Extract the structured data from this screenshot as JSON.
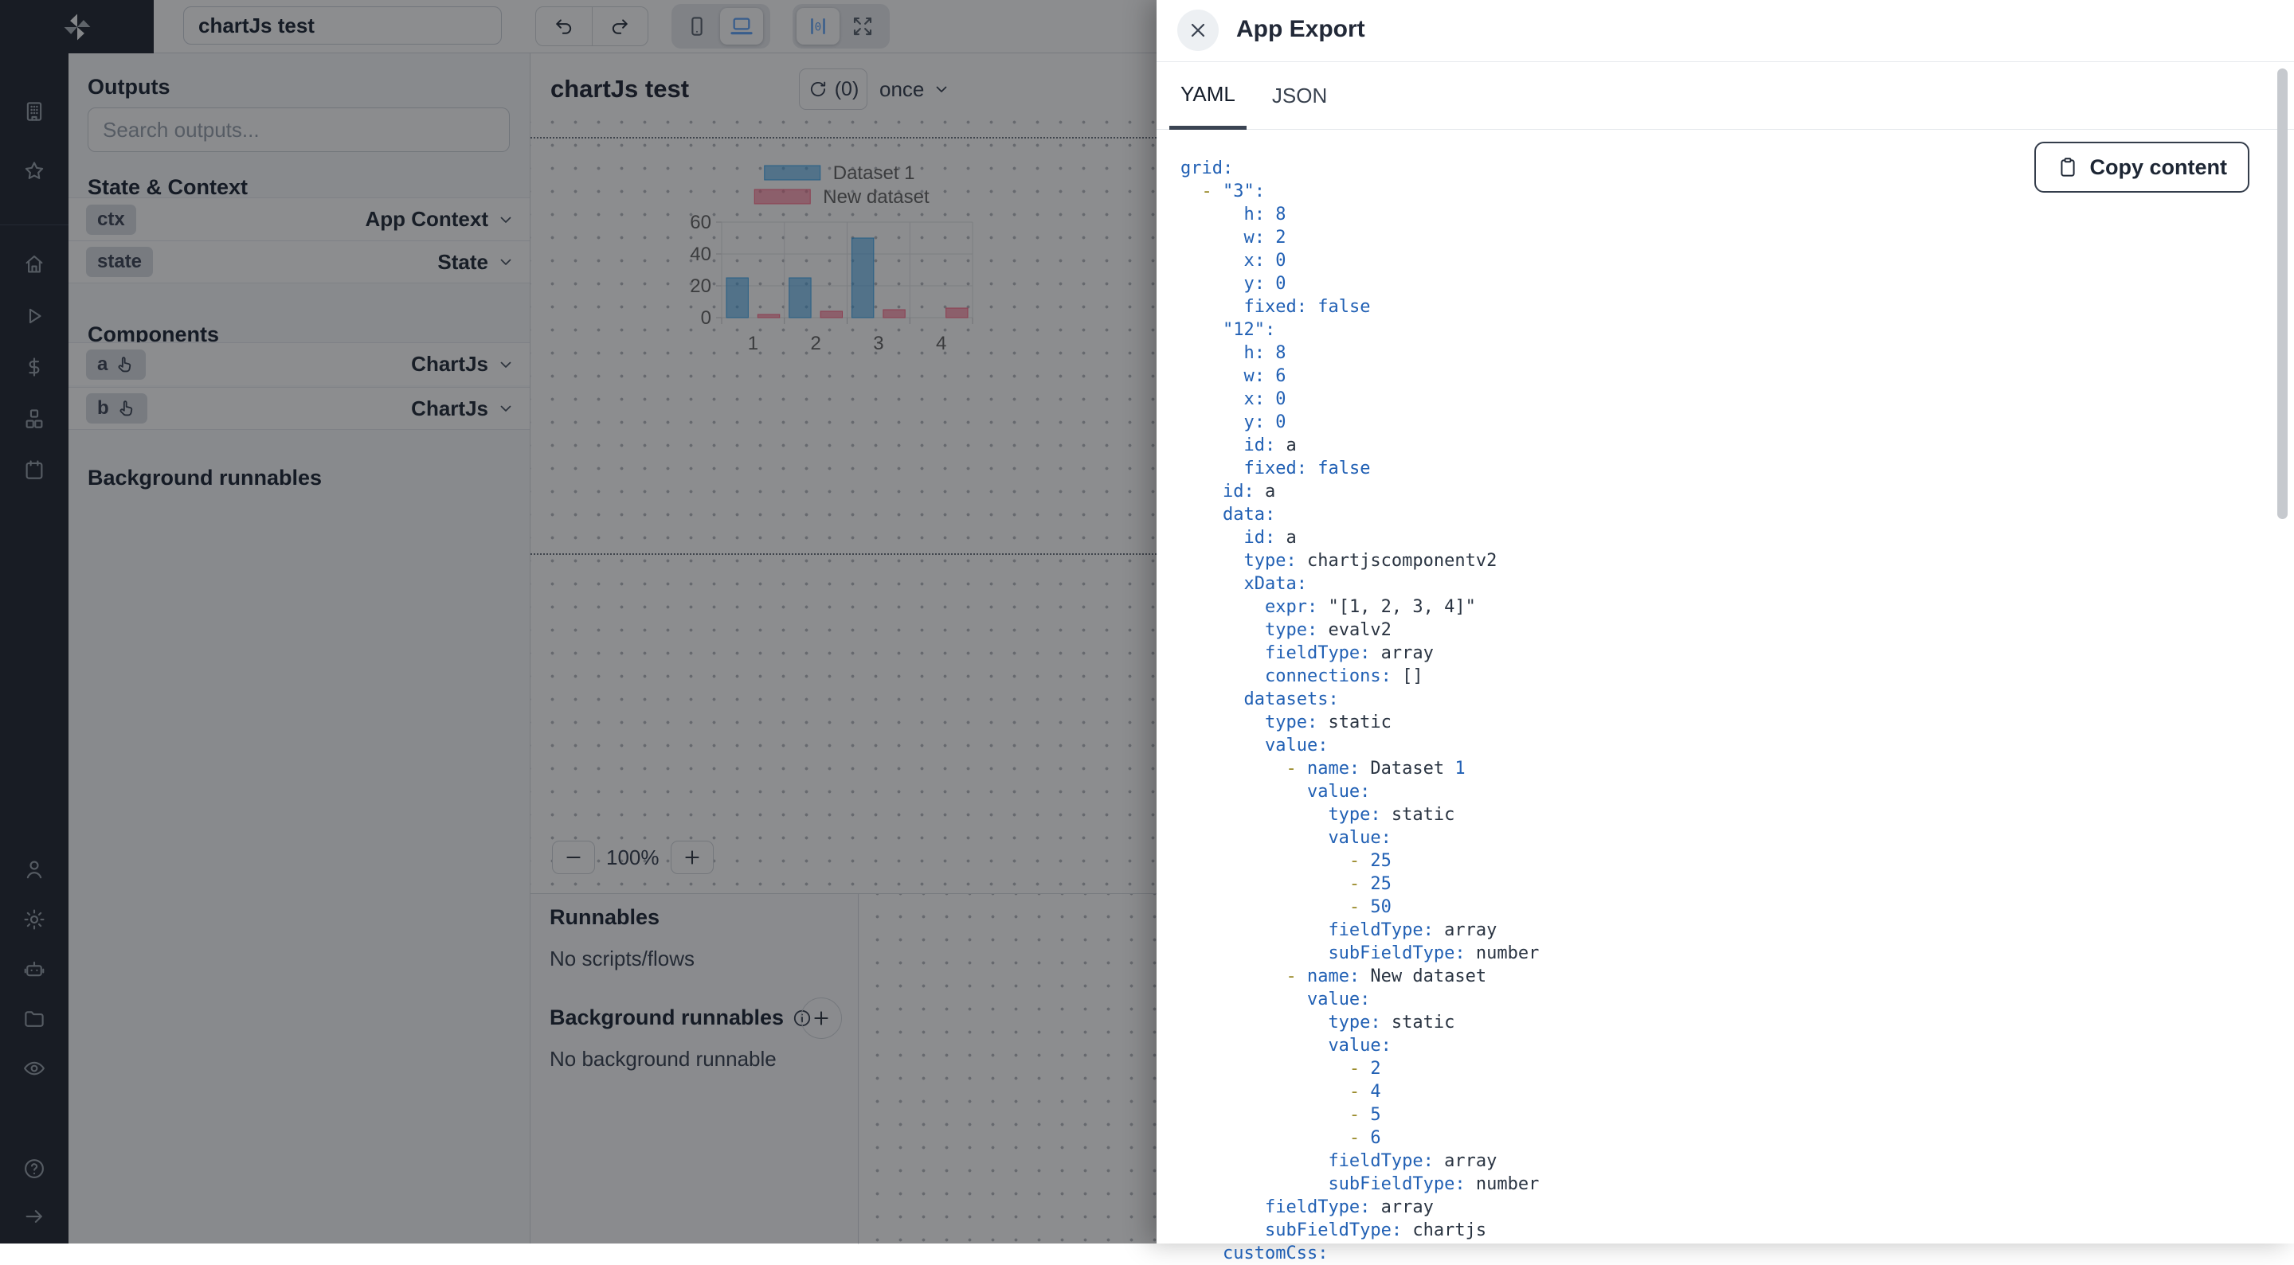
{
  "app": {
    "title_input": "chartJs test"
  },
  "sidebar": {
    "logo": "windmill-logo",
    "workspace_icons": [
      "building",
      "star"
    ],
    "nav_icons": [
      "home",
      "play",
      "dollar",
      "cubes",
      "calendar"
    ],
    "tool_icons": [
      "person",
      "gear",
      "robot",
      "folder",
      "eye"
    ],
    "footer_icons": [
      "help",
      "arrow-right"
    ]
  },
  "topbar": {
    "history_icons": [
      "undo",
      "redo"
    ],
    "device_options": [
      "phone",
      "laptop"
    ],
    "device_selected": "laptop",
    "layout_options": [
      "center",
      "fullscreen"
    ],
    "layout_selected": "center"
  },
  "outputs_panel": {
    "header": "Outputs",
    "search_placeholder": "Search outputs...",
    "state_context_header": "State & Context",
    "state_rows": [
      {
        "badge": "ctx",
        "type": "App Context"
      },
      {
        "badge": "state",
        "type": "State"
      }
    ],
    "components_header": "Components",
    "component_rows": [
      {
        "badge": "a",
        "type": "ChartJs"
      },
      {
        "badge": "b",
        "type": "ChartJs"
      }
    ],
    "background_header": "Background runnables"
  },
  "canvas": {
    "title": "chartJs test",
    "refresh_count": "(0)",
    "schedule": "once",
    "zoom_level": "100%"
  },
  "runnables_panel": {
    "header": "Runnables",
    "empty": "No scripts/flows",
    "background_header": "Background runnables",
    "background_empty": "No background runnable"
  },
  "export_panel": {
    "title": "App Export",
    "tabs": [
      "YAML",
      "JSON"
    ],
    "active_tab": "YAML",
    "copy_button": "Copy content",
    "yaml_lines": [
      [
        [
          "b",
          "grid:"
        ]
      ],
      [
        [
          "s",
          "  "
        ],
        [
          "d",
          "-"
        ],
        [
          "s",
          " "
        ],
        [
          "b",
          "\"3\":"
        ]
      ],
      [
        [
          "s",
          "      "
        ],
        [
          "b",
          "h:"
        ],
        [
          "s",
          " "
        ],
        [
          "b",
          "8"
        ]
      ],
      [
        [
          "s",
          "      "
        ],
        [
          "b",
          "w:"
        ],
        [
          "s",
          " "
        ],
        [
          "b",
          "2"
        ]
      ],
      [
        [
          "s",
          "      "
        ],
        [
          "b",
          "x:"
        ],
        [
          "s",
          " "
        ],
        [
          "b",
          "0"
        ]
      ],
      [
        [
          "s",
          "      "
        ],
        [
          "b",
          "y:"
        ],
        [
          "s",
          " "
        ],
        [
          "b",
          "0"
        ]
      ],
      [
        [
          "s",
          "      "
        ],
        [
          "b",
          "fixed:"
        ],
        [
          "s",
          " "
        ],
        [
          "b",
          "false"
        ]
      ],
      [
        [
          "s",
          "    "
        ],
        [
          "b",
          "\"12\":"
        ]
      ],
      [
        [
          "s",
          "      "
        ],
        [
          "b",
          "h:"
        ],
        [
          "s",
          " "
        ],
        [
          "b",
          "8"
        ]
      ],
      [
        [
          "s",
          "      "
        ],
        [
          "b",
          "w:"
        ],
        [
          "s",
          " "
        ],
        [
          "b",
          "6"
        ]
      ],
      [
        [
          "s",
          "      "
        ],
        [
          "b",
          "x:"
        ],
        [
          "s",
          " "
        ],
        [
          "b",
          "0"
        ]
      ],
      [
        [
          "s",
          "      "
        ],
        [
          "b",
          "y:"
        ],
        [
          "s",
          " "
        ],
        [
          "b",
          "0"
        ]
      ],
      [
        [
          "s",
          "      "
        ],
        [
          "b",
          "id:"
        ],
        [
          "s",
          " a"
        ]
      ],
      [
        [
          "s",
          "      "
        ],
        [
          "b",
          "fixed:"
        ],
        [
          "s",
          " "
        ],
        [
          "b",
          "false"
        ]
      ],
      [
        [
          "s",
          "    "
        ],
        [
          "b",
          "id:"
        ],
        [
          "s",
          " a"
        ]
      ],
      [
        [
          "s",
          "    "
        ],
        [
          "b",
          "data:"
        ]
      ],
      [
        [
          "s",
          "      "
        ],
        [
          "b",
          "id:"
        ],
        [
          "s",
          " a"
        ]
      ],
      [
        [
          "s",
          "      "
        ],
        [
          "b",
          "type:"
        ],
        [
          "s",
          " chartjscomponentv2"
        ]
      ],
      [
        [
          "s",
          "      "
        ],
        [
          "b",
          "xData:"
        ]
      ],
      [
        [
          "s",
          "        "
        ],
        [
          "b",
          "expr:"
        ],
        [
          "s",
          " \"[1, 2, 3, 4]\""
        ]
      ],
      [
        [
          "s",
          "        "
        ],
        [
          "b",
          "type:"
        ],
        [
          "s",
          " evalv2"
        ]
      ],
      [
        [
          "s",
          "        "
        ],
        [
          "b",
          "fieldType:"
        ],
        [
          "s",
          " array"
        ]
      ],
      [
        [
          "s",
          "        "
        ],
        [
          "b",
          "connections:"
        ],
        [
          "s",
          " []"
        ]
      ],
      [
        [
          "s",
          "      "
        ],
        [
          "b",
          "datasets:"
        ]
      ],
      [
        [
          "s",
          "        "
        ],
        [
          "b",
          "type:"
        ],
        [
          "s",
          " static"
        ]
      ],
      [
        [
          "s",
          "        "
        ],
        [
          "b",
          "value:"
        ]
      ],
      [
        [
          "s",
          "          "
        ],
        [
          "d",
          "-"
        ],
        [
          "s",
          " "
        ],
        [
          "b",
          "name:"
        ],
        [
          "s",
          " Dataset "
        ],
        [
          "b",
          "1"
        ]
      ],
      [
        [
          "s",
          "            "
        ],
        [
          "b",
          "value:"
        ]
      ],
      [
        [
          "s",
          "              "
        ],
        [
          "b",
          "type:"
        ],
        [
          "s",
          " static"
        ]
      ],
      [
        [
          "s",
          "              "
        ],
        [
          "b",
          "value:"
        ]
      ],
      [
        [
          "s",
          "                "
        ],
        [
          "d",
          "-"
        ],
        [
          "s",
          " "
        ],
        [
          "b",
          "25"
        ]
      ],
      [
        [
          "s",
          "                "
        ],
        [
          "d",
          "-"
        ],
        [
          "s",
          " "
        ],
        [
          "b",
          "25"
        ]
      ],
      [
        [
          "s",
          "                "
        ],
        [
          "d",
          "-"
        ],
        [
          "s",
          " "
        ],
        [
          "b",
          "50"
        ]
      ],
      [
        [
          "s",
          "              "
        ],
        [
          "b",
          "fieldType:"
        ],
        [
          "s",
          " array"
        ]
      ],
      [
        [
          "s",
          "              "
        ],
        [
          "b",
          "subFieldType:"
        ],
        [
          "s",
          " number"
        ]
      ],
      [
        [
          "s",
          "          "
        ],
        [
          "d",
          "-"
        ],
        [
          "s",
          " "
        ],
        [
          "b",
          "name:"
        ],
        [
          "s",
          " New dataset"
        ]
      ],
      [
        [
          "s",
          "            "
        ],
        [
          "b",
          "value:"
        ]
      ],
      [
        [
          "s",
          "              "
        ],
        [
          "b",
          "type:"
        ],
        [
          "s",
          " static"
        ]
      ],
      [
        [
          "s",
          "              "
        ],
        [
          "b",
          "value:"
        ]
      ],
      [
        [
          "s",
          "                "
        ],
        [
          "d",
          "-"
        ],
        [
          "s",
          " "
        ],
        [
          "b",
          "2"
        ]
      ],
      [
        [
          "s",
          "                "
        ],
        [
          "d",
          "-"
        ],
        [
          "s",
          " "
        ],
        [
          "b",
          "4"
        ]
      ],
      [
        [
          "s",
          "                "
        ],
        [
          "d",
          "-"
        ],
        [
          "s",
          " "
        ],
        [
          "b",
          "5"
        ]
      ],
      [
        [
          "s",
          "                "
        ],
        [
          "d",
          "-"
        ],
        [
          "s",
          " "
        ],
        [
          "b",
          "6"
        ]
      ],
      [
        [
          "s",
          "              "
        ],
        [
          "b",
          "fieldType:"
        ],
        [
          "s",
          " array"
        ]
      ],
      [
        [
          "s",
          "              "
        ],
        [
          "b",
          "subFieldType:"
        ],
        [
          "s",
          " number"
        ]
      ],
      [
        [
          "s",
          "        "
        ],
        [
          "b",
          "fieldType:"
        ],
        [
          "s",
          " array"
        ]
      ],
      [
        [
          "s",
          "        "
        ],
        [
          "b",
          "subFieldType:"
        ],
        [
          "s",
          " chartjs"
        ]
      ],
      [
        [
          "s",
          "    "
        ],
        [
          "b",
          "customCss:"
        ]
      ]
    ]
  },
  "chart_data": {
    "type": "bar",
    "categories": [
      "1",
      "2",
      "3",
      "4"
    ],
    "series": [
      {
        "name": "Dataset 1",
        "values": [
          25,
          25,
          50,
          null
        ],
        "fill": "rgba(54,162,235,0.55)",
        "border": "rgba(54,162,235,0.95)"
      },
      {
        "name": "New dataset",
        "values": [
          2,
          4,
          5,
          6
        ],
        "fill": "rgba(255,99,132,0.55)",
        "border": "rgba(255,99,132,0.95)"
      }
    ],
    "ylim": [
      0,
      60
    ],
    "yticks": [
      0,
      20,
      40,
      60
    ],
    "legend_position": "top",
    "grid": true,
    "tick_color": "#666666",
    "grid_color": "#e2e3e7"
  },
  "colors": {
    "accent_blue": "#60a5fa",
    "code_key": "#2160b4",
    "code_plain": "#2a3442",
    "code_dash": "#9a8a2a"
  }
}
